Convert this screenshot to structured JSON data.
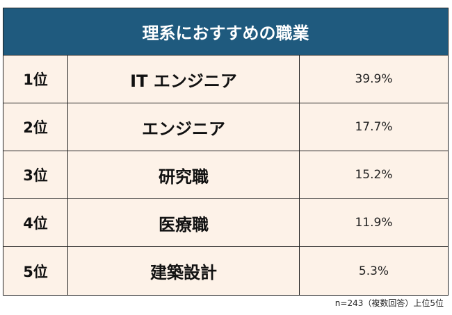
{
  "chart_data": {
    "type": "table",
    "title": "理系におすすめの職業",
    "rows": [
      {
        "rank": "1位",
        "job": "IT エンジニア",
        "percent": "39.9%",
        "value": 39.9
      },
      {
        "rank": "2位",
        "job": "エンジニア",
        "percent": "17.7%",
        "value": 17.7
      },
      {
        "rank": "3位",
        "job": "研究職",
        "percent": "15.2%",
        "value": 15.2
      },
      {
        "rank": "4位",
        "job": "医療職",
        "percent": "11.9%",
        "value": 11.9
      },
      {
        "rank": "5位",
        "job": "建築設計",
        "percent": "5.3%",
        "value": 5.3
      }
    ],
    "note": "n=243（複数回答）上位5位",
    "colors": {
      "header": "#1f5a7e",
      "row_bg": "#fdf2e8"
    }
  }
}
